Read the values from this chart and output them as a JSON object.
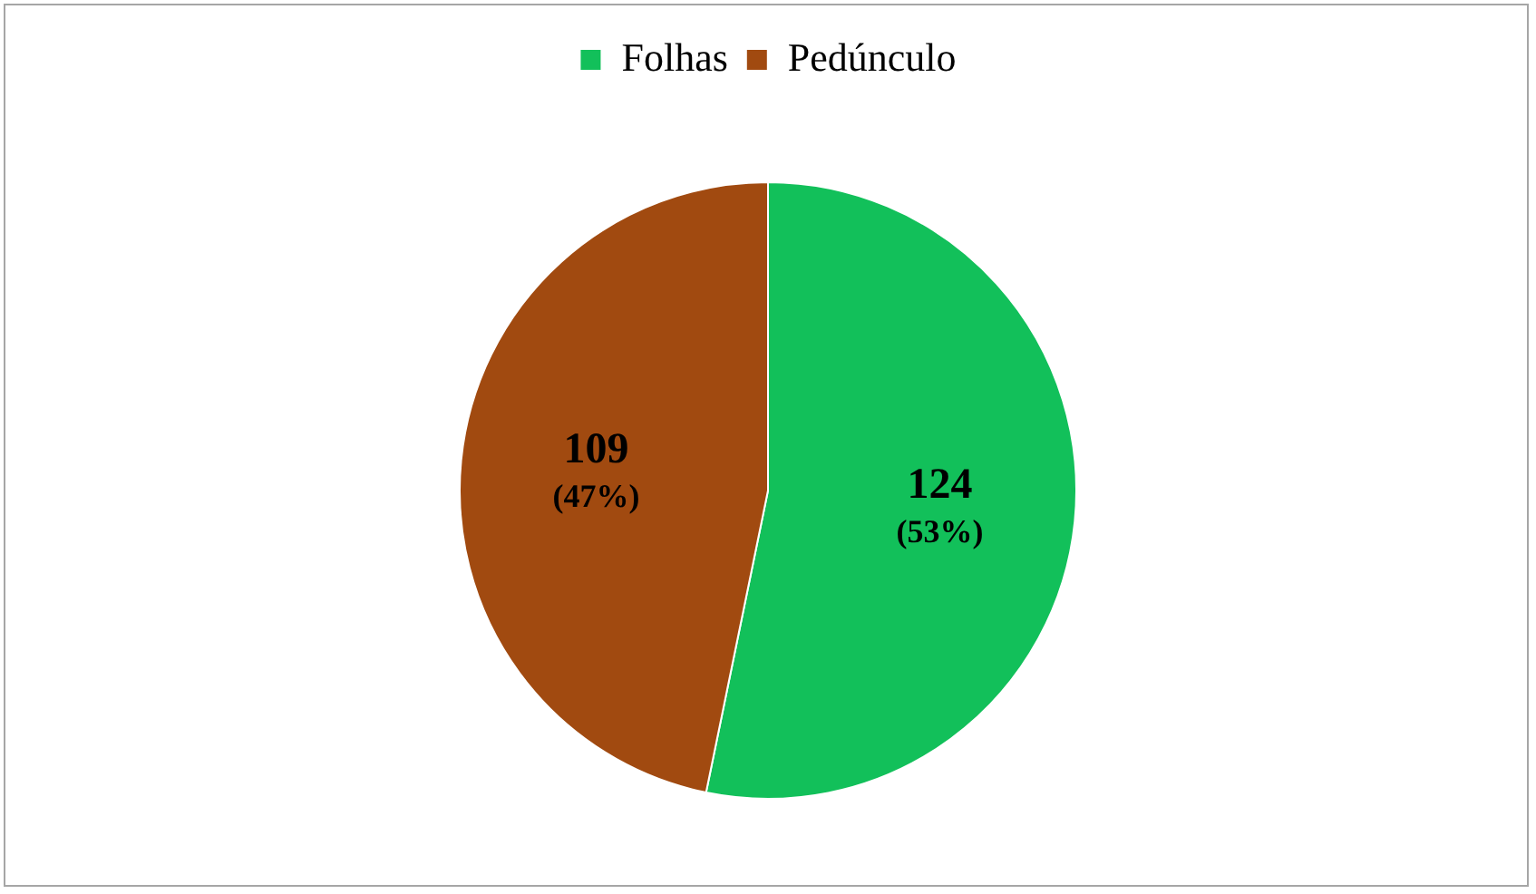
{
  "chart_data": {
    "type": "pie",
    "categories": [
      "Folhas",
      "Pedúnculo"
    ],
    "values": [
      124,
      109
    ],
    "colors": [
      "#12c05a",
      "#a14a10"
    ],
    "value_labels": [
      "124\n(53%)",
      "109\n(47%)"
    ],
    "legend": "top"
  }
}
